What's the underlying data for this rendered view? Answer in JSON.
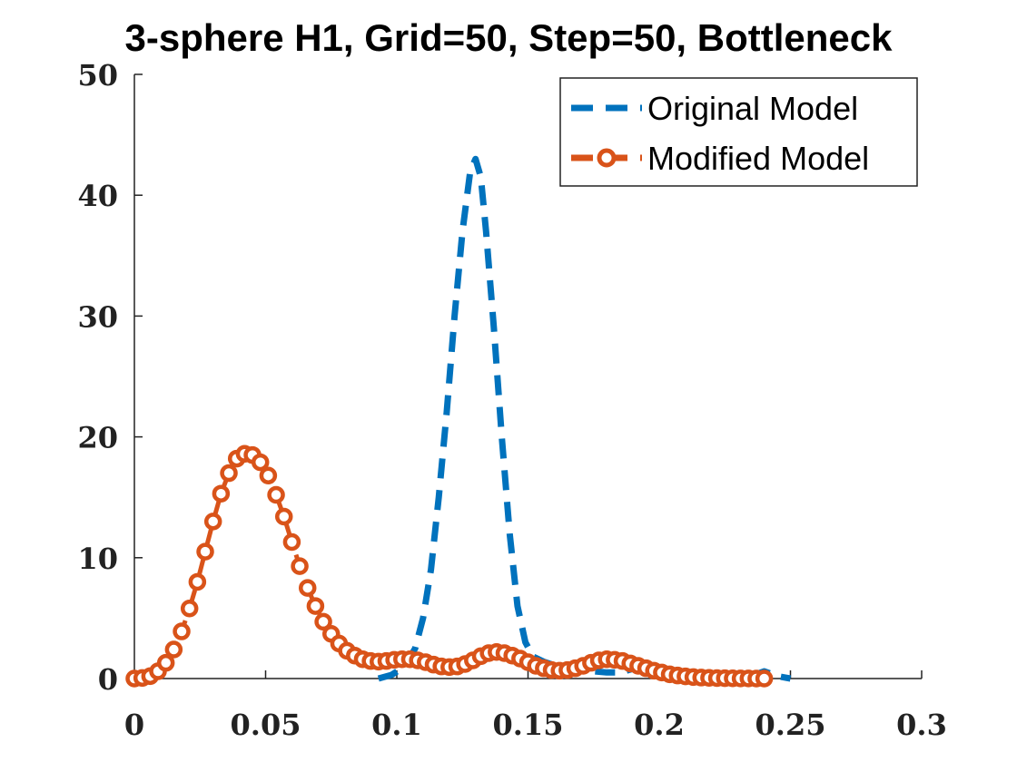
{
  "chart_data": {
    "type": "line",
    "title": "3-sphere H1, Grid=50, Step=50, Bottleneck",
    "xlabel": "",
    "ylabel": "",
    "xlim": [
      0,
      0.3
    ],
    "ylim": [
      0,
      50
    ],
    "xticks": [
      0,
      0.05,
      0.1,
      0.15,
      0.2,
      0.25,
      0.3
    ],
    "xtick_labels": [
      "0",
      "0.05",
      "0.1",
      "0.15",
      "0.2",
      "0.25",
      "0.3"
    ],
    "yticks": [
      0,
      10,
      20,
      30,
      40,
      50
    ],
    "ytick_labels": [
      "0",
      "10",
      "20",
      "30",
      "40",
      "50"
    ],
    "grid": false,
    "legend_position": "top-right",
    "series": [
      {
        "name": "Original Model",
        "color": "#0072BD",
        "style": "dashed",
        "marker": "none",
        "x": [
          0.093,
          0.098,
          0.103,
          0.107,
          0.11,
          0.113,
          0.116,
          0.119,
          0.122,
          0.125,
          0.128,
          0.13,
          0.132,
          0.134,
          0.137,
          0.14,
          0.143,
          0.146,
          0.149,
          0.152,
          0.156,
          0.16,
          0.165,
          0.17,
          0.175,
          0.18,
          0.185,
          0.19,
          0.195,
          0.2,
          0.205,
          0.21,
          0.215,
          0.22,
          0.225,
          0.23,
          0.235,
          0.24,
          0.245,
          0.25
        ],
        "y": [
          0,
          0.3,
          1.0,
          2.5,
          5.0,
          9.0,
          15.0,
          22.0,
          30.0,
          37.0,
          42.0,
          43.0,
          41.5,
          37.0,
          29.0,
          20.0,
          12.0,
          6.0,
          3.0,
          1.8,
          1.4,
          1.1,
          0.9,
          0.8,
          0.6,
          0.5,
          0.5,
          0.8,
          1.0,
          0.5,
          0.1,
          0.0,
          0.0,
          0.0,
          0.0,
          0.0,
          0.2,
          0.6,
          0.2,
          0.0
        ]
      },
      {
        "name": "Modified Model",
        "color": "#D95319",
        "style": "dashed",
        "marker": "circle",
        "x": [
          0.0,
          0.003,
          0.006,
          0.009,
          0.012,
          0.015,
          0.018,
          0.021,
          0.024,
          0.027,
          0.03,
          0.033,
          0.036,
          0.039,
          0.042,
          0.045,
          0.048,
          0.051,
          0.054,
          0.057,
          0.06,
          0.063,
          0.066,
          0.069,
          0.072,
          0.075,
          0.078,
          0.081,
          0.084,
          0.087,
          0.09,
          0.093,
          0.096,
          0.099,
          0.102,
          0.105,
          0.108,
          0.111,
          0.114,
          0.117,
          0.12,
          0.123,
          0.126,
          0.129,
          0.132,
          0.135,
          0.138,
          0.141,
          0.144,
          0.147,
          0.15,
          0.153,
          0.156,
          0.159,
          0.162,
          0.165,
          0.168,
          0.171,
          0.174,
          0.177,
          0.18,
          0.183,
          0.186,
          0.189,
          0.192,
          0.195,
          0.198,
          0.201,
          0.204,
          0.207,
          0.21,
          0.213,
          0.216,
          0.219,
          0.222,
          0.225,
          0.228,
          0.231,
          0.234,
          0.237,
          0.24
        ],
        "y": [
          0.0,
          0.05,
          0.2,
          0.6,
          1.3,
          2.4,
          3.9,
          5.8,
          8.0,
          10.5,
          13.0,
          15.3,
          17.0,
          18.2,
          18.6,
          18.5,
          17.9,
          16.8,
          15.2,
          13.4,
          11.3,
          9.3,
          7.5,
          6.0,
          4.7,
          3.7,
          2.9,
          2.3,
          1.9,
          1.6,
          1.45,
          1.4,
          1.45,
          1.55,
          1.6,
          1.6,
          1.5,
          1.35,
          1.15,
          1.0,
          0.95,
          1.0,
          1.2,
          1.5,
          1.85,
          2.1,
          2.2,
          2.1,
          1.9,
          1.65,
          1.35,
          1.05,
          0.85,
          0.7,
          0.65,
          0.7,
          0.85,
          1.05,
          1.3,
          1.5,
          1.6,
          1.55,
          1.45,
          1.25,
          1.05,
          0.85,
          0.65,
          0.5,
          0.35,
          0.25,
          0.18,
          0.12,
          0.08,
          0.06,
          0.04,
          0.03,
          0.02,
          0.01,
          0.01,
          0.0,
          0.0
        ]
      }
    ]
  }
}
